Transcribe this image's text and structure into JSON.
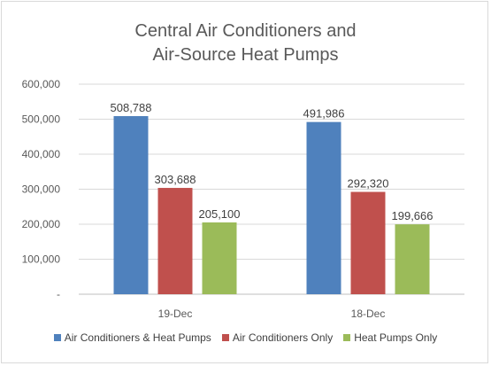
{
  "chart_data": {
    "type": "bar",
    "title_lines": [
      "Central Air Conditioners and",
      "Air-Source Heat Pumps"
    ],
    "categories": [
      "19-Dec",
      "18-Dec"
    ],
    "series": [
      {
        "name": "Air Conditioners & Heat Pumps",
        "values": [
          508788,
          491986
        ],
        "labels": [
          "508,788",
          "491,986"
        ],
        "color": "#4f81bd"
      },
      {
        "name": "Air Conditioners Only",
        "values": [
          303688,
          292320
        ],
        "labels": [
          "303,688",
          "292,320"
        ],
        "color": "#c0504d"
      },
      {
        "name": "Heat Pumps Only",
        "values": [
          205100,
          199666
        ],
        "labels": [
          "205,100",
          "199,666"
        ],
        "color": "#9bbb59"
      }
    ],
    "y_ticks": [
      "-",
      "100,000",
      "200,000",
      "300,000",
      "400,000",
      "500,000",
      "600,000"
    ],
    "ylim": [
      0,
      600000
    ],
    "grid": true,
    "legend_position": "bottom"
  }
}
